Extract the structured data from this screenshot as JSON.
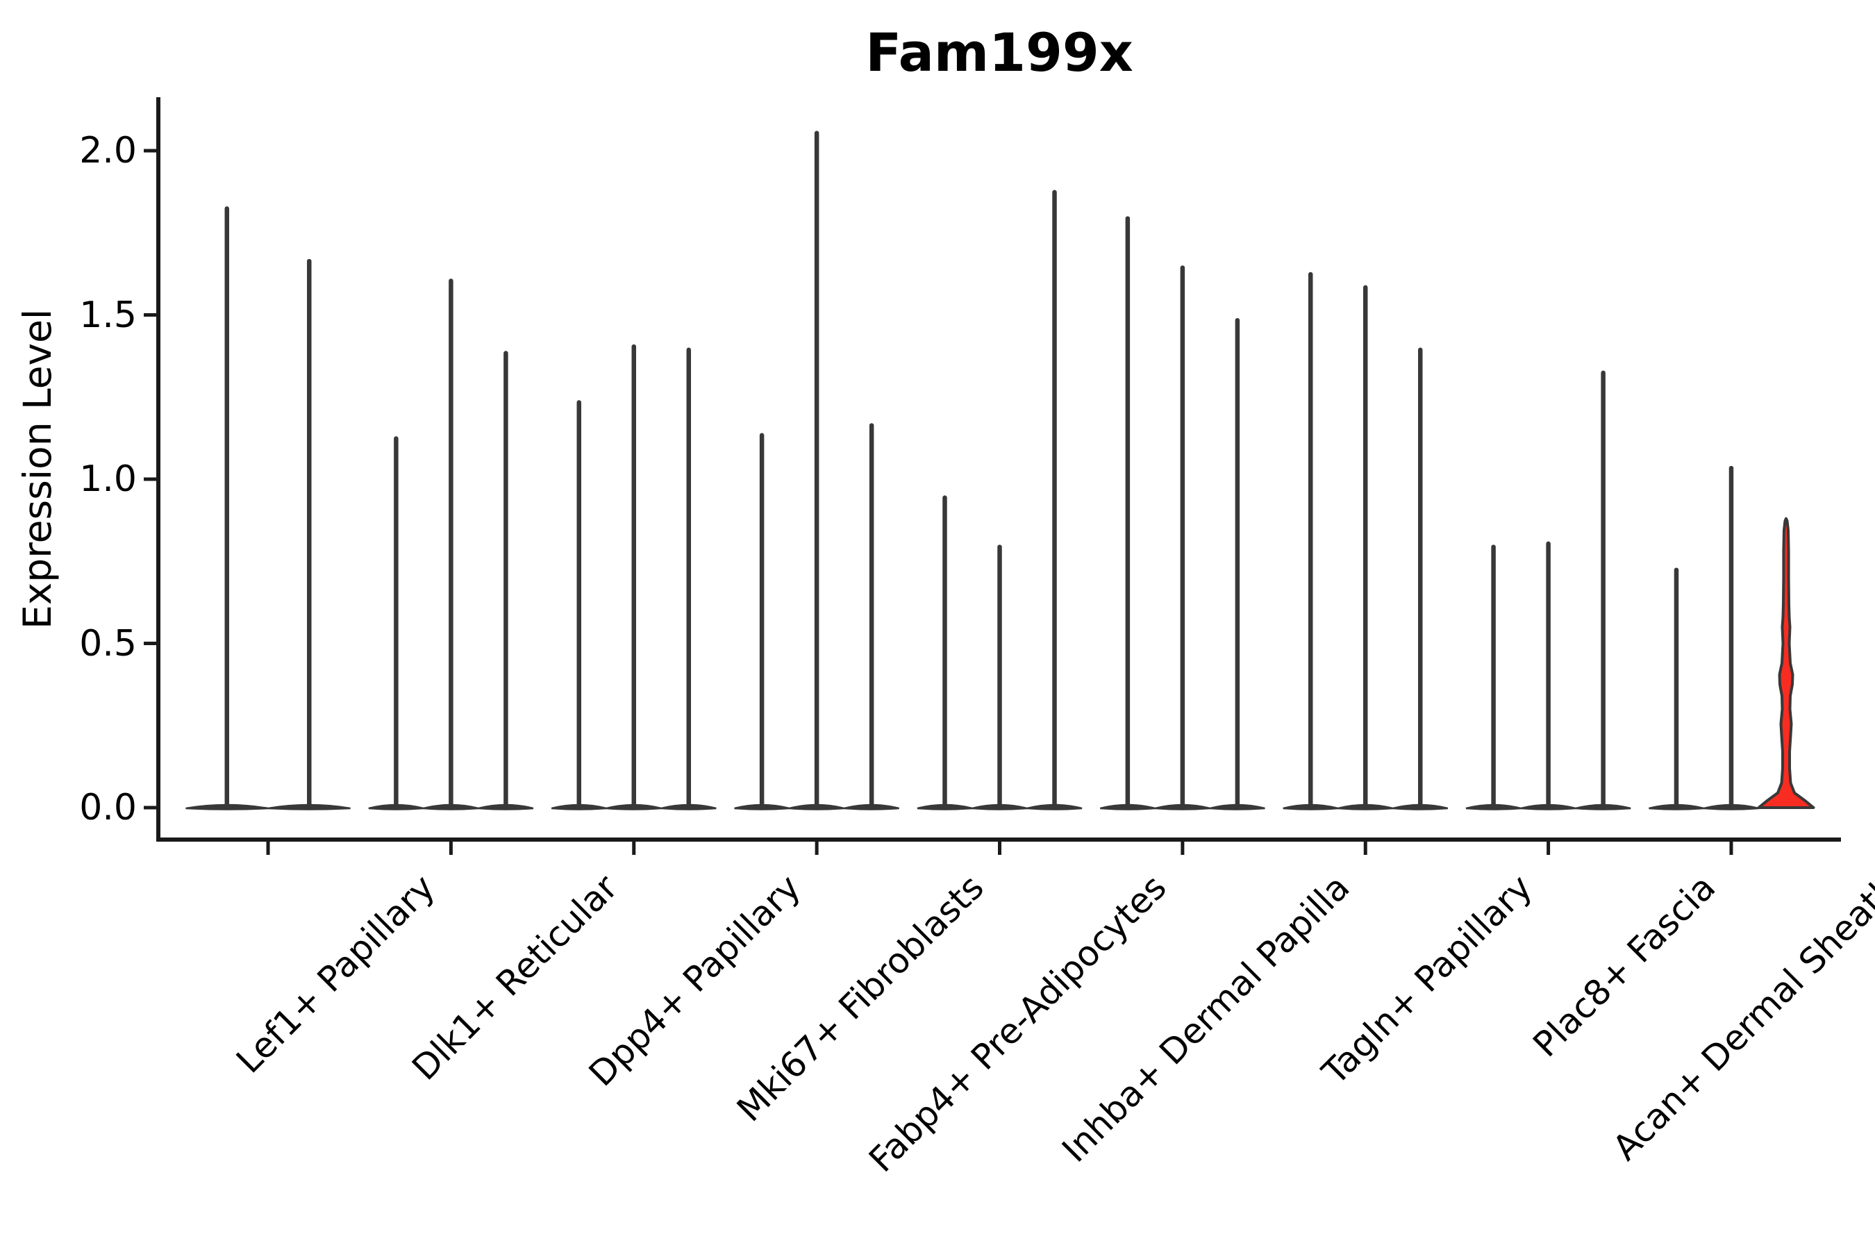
{
  "chart_data": {
    "type": "violin",
    "title": "Fam199x",
    "xlabel": "",
    "ylabel": "Expression Level",
    "ylim": [
      -0.05,
      2.16
    ],
    "yticks": [
      0.0,
      0.5,
      1.0,
      1.5,
      2.0
    ],
    "ytick_labels": [
      "0.0",
      "0.5",
      "1.0",
      "1.5",
      "2.0"
    ],
    "grid": false,
    "legend": "none",
    "axis_color": "#000000",
    "violin_outline_color": "#383838",
    "highlight_fill_color": "#f92c21",
    "categories": [
      "Lef1+ Papillary",
      "Dlk1+ Reticular",
      "Dpp4+ Papillary",
      "Mki67+ Fibroblasts",
      "Fabp4+ Pre-Adipocytes",
      "Inhba+ Dermal Papilla",
      "Tagln+ Papillary",
      "Plac8+ Fascia",
      "Acan+ Dermal Sheath"
    ],
    "groups": [
      {
        "category": "Lef1+ Papillary",
        "violins": [
          {
            "max": 1.83
          },
          {
            "max": 1.67
          }
        ]
      },
      {
        "category": "Dlk1+ Reticular",
        "violins": [
          {
            "max": 1.13
          },
          {
            "max": 1.61
          },
          {
            "max": 1.39
          }
        ]
      },
      {
        "category": "Dpp4+ Papillary",
        "violins": [
          {
            "max": 1.24
          },
          {
            "max": 1.41
          },
          {
            "max": 1.4
          }
        ]
      },
      {
        "category": "Mki67+ Fibroblasts",
        "violins": [
          {
            "max": 1.14
          },
          {
            "max": 2.06
          },
          {
            "max": 1.17
          }
        ]
      },
      {
        "category": "Fabp4+ Pre-Adipocytes",
        "violins": [
          {
            "max": 0.95
          },
          {
            "max": 0.8
          },
          {
            "max": 1.88
          }
        ]
      },
      {
        "category": "Inhba+ Dermal Papilla",
        "violins": [
          {
            "max": 1.8
          },
          {
            "max": 1.65
          },
          {
            "max": 1.49
          }
        ]
      },
      {
        "category": "Tagln+ Papillary",
        "violins": [
          {
            "max": 1.63
          },
          {
            "max": 1.59
          },
          {
            "max": 1.4
          }
        ]
      },
      {
        "category": "Plac8+ Fascia",
        "violins": [
          {
            "max": 0.8
          },
          {
            "max": 0.81
          },
          {
            "max": 1.33
          }
        ]
      },
      {
        "category": "Acan+ Dermal Sheath",
        "violins": [
          {
            "max": 0.73
          },
          {
            "max": 1.04
          },
          {
            "max": 0.88,
            "highlighted": true,
            "bulge_values": [
              0.24,
              0.39
            ]
          }
        ]
      }
    ]
  }
}
